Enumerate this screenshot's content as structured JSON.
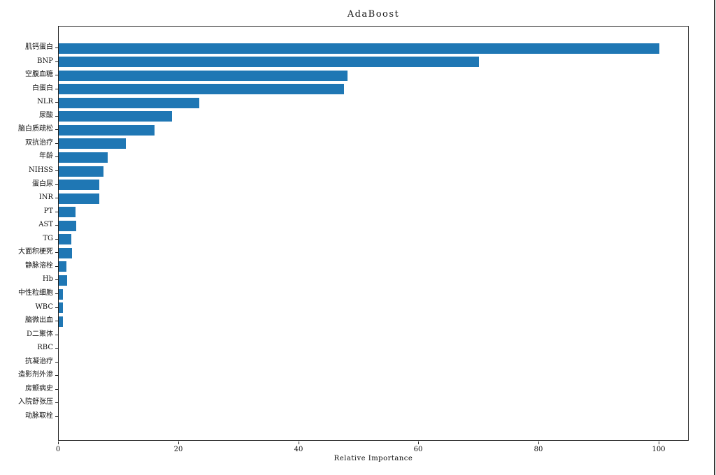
{
  "chart_data": {
    "type": "bar",
    "orientation": "horizontal",
    "title": "AdaBoost",
    "xlabel": "Relative Importance",
    "ylabel": "",
    "categories": [
      "肌钙蛋白",
      "BNP",
      "空腹血糖",
      "白蛋白",
      "NLR",
      "尿酸",
      "脑白质疏松",
      "双抗治疗",
      "年龄",
      "NIHSS",
      "蛋白尿",
      "INR",
      "PT",
      "AST",
      "TG",
      "大面积梗死",
      "静脉溶栓",
      "Hb",
      "中性粒细胞",
      "WBC",
      "脑微出血",
      "D二聚体",
      "RBC",
      "抗凝治疗",
      "造影剂外渗",
      "房颤病史",
      "入院舒张压",
      "动脉取栓"
    ],
    "values": [
      100,
      70,
      48.1,
      47.5,
      23.4,
      18.9,
      15.9,
      11.2,
      8.1,
      7.4,
      6.7,
      6.7,
      2.8,
      2.9,
      2.1,
      2.2,
      1.3,
      1.4,
      0.7,
      0.7,
      0.7,
      0,
      0,
      0,
      0,
      0,
      0,
      0
    ],
    "xlim": [
      0,
      105
    ],
    "xticks": [
      0,
      20,
      40,
      60,
      80,
      100
    ],
    "bar_color": "#1f77b4",
    "grid": false,
    "legend": null
  }
}
